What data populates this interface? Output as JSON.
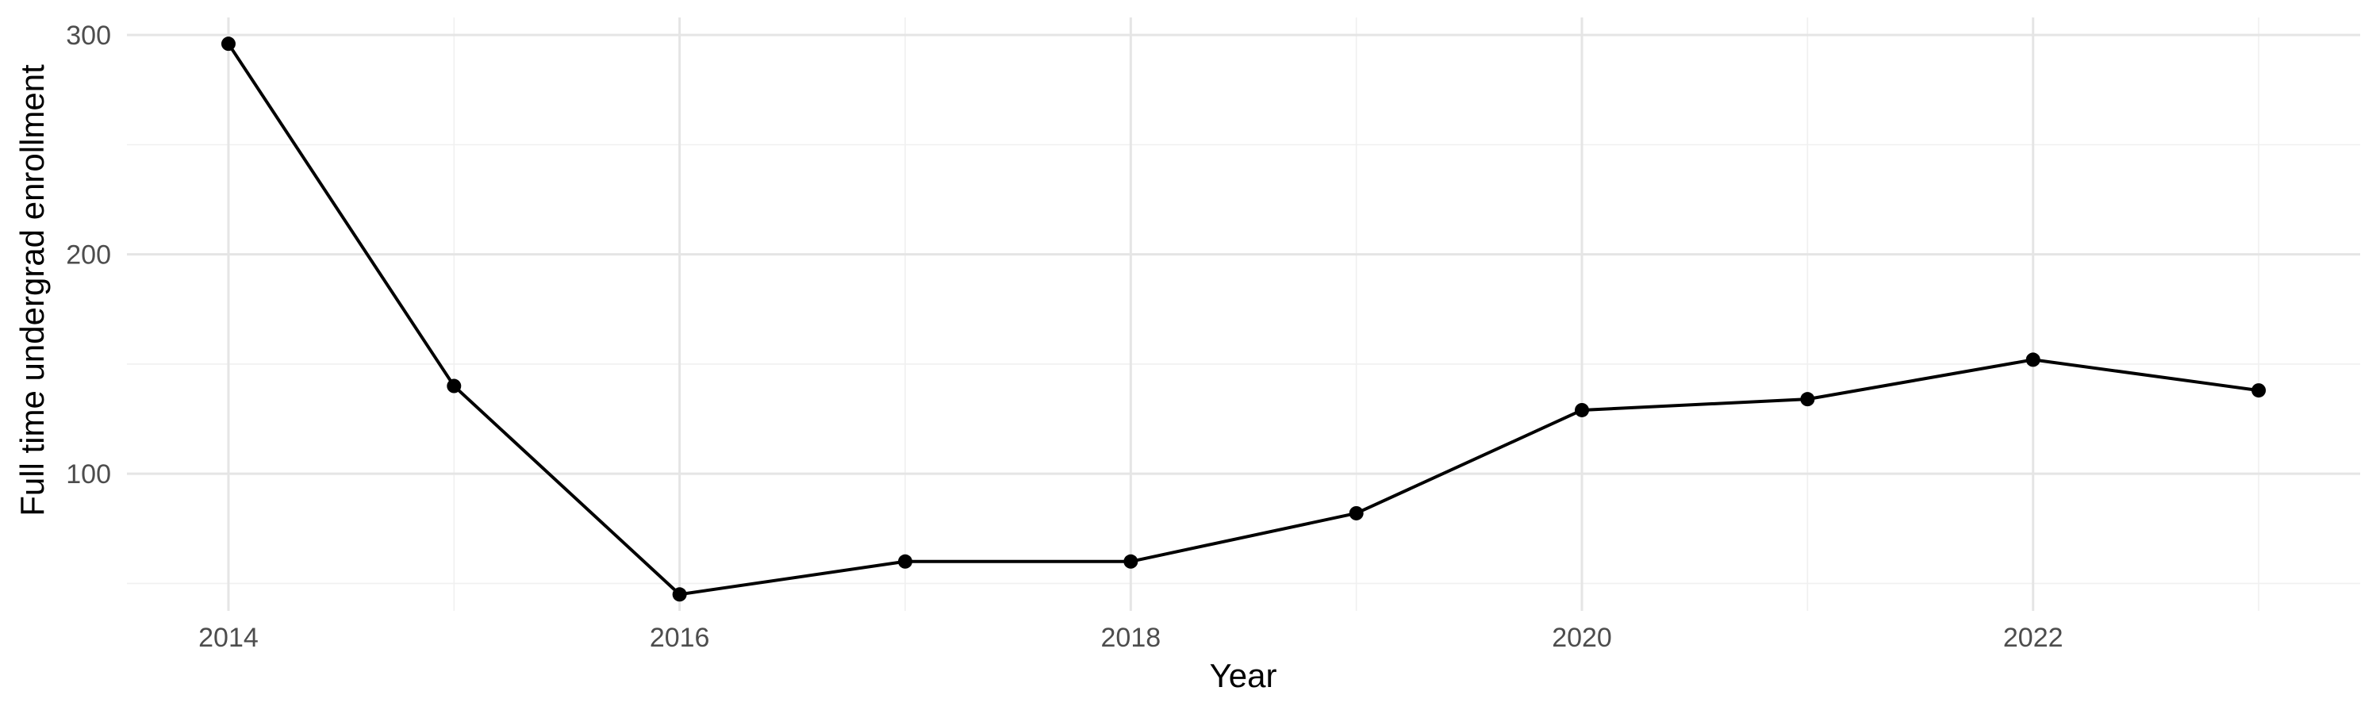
{
  "chart_data": {
    "type": "line",
    "title": "",
    "xlabel": "Year",
    "ylabel": "Full time undergrad enrollment",
    "x": [
      2014,
      2015,
      2016,
      2017,
      2018,
      2019,
      2020,
      2021,
      2022,
      2023
    ],
    "series": [
      {
        "values": [
          296,
          140,
          45,
          60,
          60,
          82,
          129,
          134,
          152,
          138
        ],
        "color": "#000000"
      }
    ],
    "xlim": [
      2013.55,
      2023.45
    ],
    "ylim": [
      37.5,
      308
    ],
    "x_ticks": [
      2014,
      2016,
      2018,
      2020,
      2022
    ],
    "x_tick_labels": [
      "2014",
      "2016",
      "2018",
      "2020",
      "2022"
    ],
    "y_ticks": [
      100,
      200,
      300
    ],
    "y_tick_labels": [
      "100",
      "200",
      "300"
    ],
    "grid": true,
    "legend": "none"
  }
}
